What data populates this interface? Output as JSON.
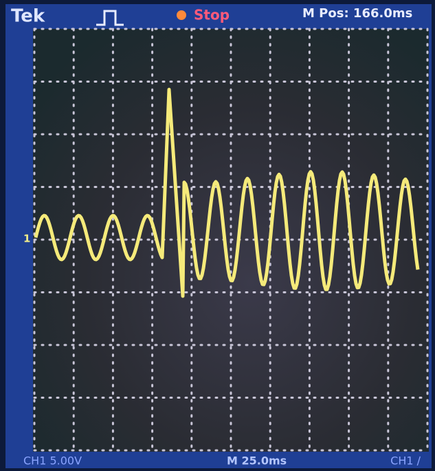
{
  "header": {
    "brand": "Tek",
    "status": "Stop",
    "position": "M Pos: 166.0ms"
  },
  "screen": {
    "channel_marker": "1"
  },
  "footer": {
    "channel_scale": "CH1 5.00V",
    "timebase": "M 25.0ms",
    "trigger": "CH1 ∕"
  }
}
